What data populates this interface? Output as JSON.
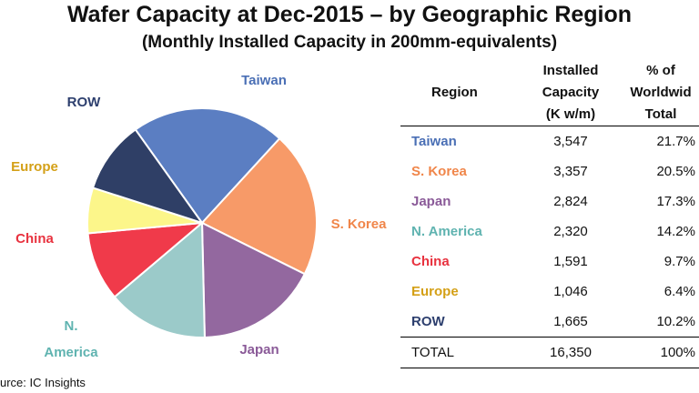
{
  "title": "Wafer Capacity at Dec-2015 – by Geographic Region",
  "subtitle": "(Monthly Installed Capacity in 200mm-equivalents)",
  "source": "urce:  IC Insights",
  "table": {
    "headers": [
      "Region",
      "Installed Capacity (K w/m)",
      "% of Worldwid Total"
    ],
    "total": {
      "region": "TOTAL",
      "capacity": "16,350",
      "pct": "100%"
    }
  },
  "pie_labels": {
    "Taiwan": "Taiwan",
    "S. Korea": "S. Korea",
    "Japan": "Japan",
    "N. America": [
      "N.",
      "America"
    ],
    "China": "China",
    "Europe": "Europe",
    "ROW": "ROW"
  },
  "chart_data": {
    "type": "pie",
    "title": "Wafer Capacity at Dec-2015 – by Geographic Region",
    "subtitle": "(Monthly Installed Capacity in 200mm-equivalents)",
    "slices": [
      {
        "label": "Taiwan",
        "value": 3547,
        "value_label": "3,547",
        "percent": "21.7%",
        "color": "#5b7ec2"
      },
      {
        "label": "S. Korea",
        "value": 3357,
        "value_label": "3,357",
        "percent": "20.5%",
        "color": "#f79a68"
      },
      {
        "label": "Japan",
        "value": 2824,
        "value_label": "2,824",
        "percent": "17.3%",
        "color": "#93689f"
      },
      {
        "label": "N. America",
        "value": 2320,
        "value_label": "2,320",
        "percent": "14.2%",
        "color": "#9bcac9"
      },
      {
        "label": "China",
        "value": 1591,
        "value_label": "1,591",
        "percent": "9.7%",
        "color": "#f03a4a"
      },
      {
        "label": "Europe",
        "value": 1046,
        "value_label": "1,046",
        "percent": "6.4%",
        "color": "#fcf68a"
      },
      {
        "label": "ROW",
        "value": 1665,
        "value_label": "1,665",
        "percent": "10.2%",
        "color": "#2f3f66"
      }
    ],
    "label_colors": {
      "Taiwan": "#4a6fb5",
      "S. Korea": "#f0864a",
      "Japan": "#8a5a98",
      "N. America": "#5fb3b0",
      "China": "#e8323f",
      "Europe": "#d4a017",
      "ROW": "#2d3f6e"
    }
  }
}
